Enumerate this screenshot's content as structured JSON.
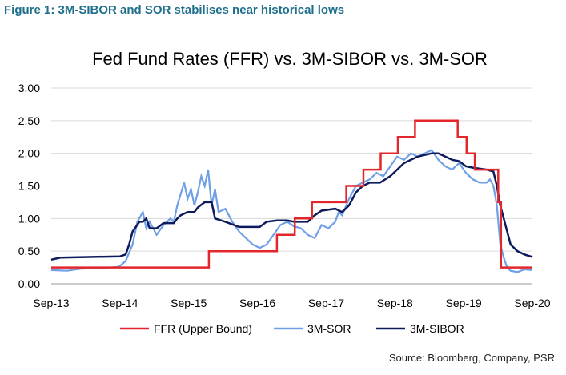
{
  "figure_title": "Figure 1: 3M-SIBOR and SOR stabilises near historical lows",
  "source": "Source: Bloomberg, Company, PSR",
  "colors": {
    "ffr": "#e3262b",
    "sor": "#6f9fe6",
    "sibor": "#0d1a5c",
    "title": "#1f6f8b"
  },
  "chart_data": {
    "type": "line",
    "title": "Fed Fund Rates (FFR) vs. 3M-SIBOR vs. 3M-SOR",
    "xlabel": "",
    "ylabel": "",
    "ylim": [
      0,
      3
    ],
    "xlim": [
      2013.667,
      2020.667
    ],
    "yticks": [
      "0.00",
      "0.50",
      "1.00",
      "1.50",
      "2.00",
      "2.50",
      "3.00"
    ],
    "xticks": [
      {
        "label": "Sep-13",
        "x": 2013.667
      },
      {
        "label": "Sep-14",
        "x": 2014.667
      },
      {
        "label": "Sep-15",
        "x": 2015.667
      },
      {
        "label": "Sep-16",
        "x": 2016.667
      },
      {
        "label": "Sep-17",
        "x": 2017.667
      },
      {
        "label": "Sep-18",
        "x": 2018.667
      },
      {
        "label": "Sep-19",
        "x": 2019.667
      },
      {
        "label": "Sep-20",
        "x": 2020.667
      }
    ],
    "grid": "horizontal",
    "legend": "bottom",
    "series": [
      {
        "name": "FFR (Upper Bound)",
        "step": true,
        "points": [
          [
            2013.667,
            0.25
          ],
          [
            2015.96,
            0.25
          ],
          [
            2015.96,
            0.5
          ],
          [
            2016.95,
            0.5
          ],
          [
            2016.95,
            0.75
          ],
          [
            2017.21,
            0.75
          ],
          [
            2017.21,
            1.0
          ],
          [
            2017.46,
            1.0
          ],
          [
            2017.46,
            1.25
          ],
          [
            2017.96,
            1.25
          ],
          [
            2017.96,
            1.5
          ],
          [
            2018.21,
            1.5
          ],
          [
            2018.21,
            1.75
          ],
          [
            2018.46,
            1.75
          ],
          [
            2018.46,
            2.0
          ],
          [
            2018.71,
            2.0
          ],
          [
            2018.71,
            2.25
          ],
          [
            2018.96,
            2.25
          ],
          [
            2018.96,
            2.5
          ],
          [
            2019.58,
            2.5
          ],
          [
            2019.58,
            2.25
          ],
          [
            2019.71,
            2.25
          ],
          [
            2019.71,
            2.0
          ],
          [
            2019.83,
            2.0
          ],
          [
            2019.83,
            1.75
          ],
          [
            2020.17,
            1.75
          ],
          [
            2020.17,
            1.25
          ],
          [
            2020.21,
            1.25
          ],
          [
            2020.21,
            0.25
          ],
          [
            2020.667,
            0.25
          ]
        ]
      },
      {
        "name": "3M-SOR",
        "points": [
          [
            2013.667,
            0.21
          ],
          [
            2013.9,
            0.2
          ],
          [
            2014.1,
            0.23
          ],
          [
            2014.4,
            0.24
          ],
          [
            2014.65,
            0.26
          ],
          [
            2014.75,
            0.35
          ],
          [
            2014.85,
            0.6
          ],
          [
            2014.92,
            0.95
          ],
          [
            2015.0,
            1.1
          ],
          [
            2015.05,
            0.85
          ],
          [
            2015.1,
            0.95
          ],
          [
            2015.2,
            0.75
          ],
          [
            2015.3,
            0.9
          ],
          [
            2015.4,
            1.0
          ],
          [
            2015.45,
            0.95
          ],
          [
            2015.5,
            1.2
          ],
          [
            2015.6,
            1.55
          ],
          [
            2015.65,
            1.3
          ],
          [
            2015.7,
            1.45
          ],
          [
            2015.75,
            1.2
          ],
          [
            2015.8,
            1.4
          ],
          [
            2015.85,
            1.65
          ],
          [
            2015.9,
            1.5
          ],
          [
            2015.95,
            1.75
          ],
          [
            2016.0,
            1.2
          ],
          [
            2016.05,
            1.45
          ],
          [
            2016.1,
            1.1
          ],
          [
            2016.2,
            1.15
          ],
          [
            2016.3,
            0.95
          ],
          [
            2016.4,
            0.8
          ],
          [
            2016.5,
            0.7
          ],
          [
            2016.6,
            0.6
          ],
          [
            2016.7,
            0.55
          ],
          [
            2016.8,
            0.6
          ],
          [
            2016.9,
            0.75
          ],
          [
            2017.0,
            0.9
          ],
          [
            2017.1,
            0.95
          ],
          [
            2017.2,
            0.88
          ],
          [
            2017.3,
            0.85
          ],
          [
            2017.4,
            0.75
          ],
          [
            2017.5,
            0.7
          ],
          [
            2017.6,
            0.9
          ],
          [
            2017.7,
            0.85
          ],
          [
            2017.8,
            0.95
          ],
          [
            2017.85,
            1.1
          ],
          [
            2017.9,
            1.05
          ],
          [
            2018.0,
            1.3
          ],
          [
            2018.1,
            1.5
          ],
          [
            2018.2,
            1.55
          ],
          [
            2018.3,
            1.6
          ],
          [
            2018.4,
            1.7
          ],
          [
            2018.5,
            1.65
          ],
          [
            2018.6,
            1.8
          ],
          [
            2018.7,
            1.95
          ],
          [
            2018.8,
            1.9
          ],
          [
            2018.9,
            2.0
          ],
          [
            2019.0,
            1.95
          ],
          [
            2019.1,
            2.0
          ],
          [
            2019.2,
            2.05
          ],
          [
            2019.3,
            1.9
          ],
          [
            2019.4,
            1.8
          ],
          [
            2019.5,
            1.75
          ],
          [
            2019.6,
            1.85
          ],
          [
            2019.7,
            1.7
          ],
          [
            2019.8,
            1.6
          ],
          [
            2019.9,
            1.55
          ],
          [
            2020.0,
            1.55
          ],
          [
            2020.05,
            1.6
          ],
          [
            2020.1,
            1.5
          ],
          [
            2020.15,
            1.2
          ],
          [
            2020.2,
            0.6
          ],
          [
            2020.25,
            0.4
          ],
          [
            2020.3,
            0.25
          ],
          [
            2020.35,
            0.2
          ],
          [
            2020.45,
            0.18
          ],
          [
            2020.55,
            0.22
          ],
          [
            2020.667,
            0.21
          ]
        ]
      },
      {
        "name": "3M-SIBOR",
        "step": true,
        "points": [
          [
            2013.667,
            0.37
          ],
          [
            2013.8,
            0.4
          ],
          [
            2014.667,
            0.42
          ],
          [
            2014.75,
            0.45
          ],
          [
            2014.8,
            0.6
          ],
          [
            2014.85,
            0.8
          ],
          [
            2014.95,
            0.95
          ],
          [
            2015.0,
            0.95
          ],
          [
            2015.05,
            1.0
          ],
          [
            2015.1,
            0.85
          ],
          [
            2015.2,
            0.85
          ],
          [
            2015.3,
            0.93
          ],
          [
            2015.45,
            0.93
          ],
          [
            2015.5,
            1.0
          ],
          [
            2015.55,
            1.05
          ],
          [
            2015.65,
            1.1
          ],
          [
            2015.75,
            1.1
          ],
          [
            2015.8,
            1.17
          ],
          [
            2015.9,
            1.25
          ],
          [
            2016.0,
            1.25
          ],
          [
            2016.05,
            1.0
          ],
          [
            2016.2,
            0.95
          ],
          [
            2016.4,
            0.87
          ],
          [
            2016.6,
            0.87
          ],
          [
            2016.7,
            0.87
          ],
          [
            2016.8,
            0.95
          ],
          [
            2016.95,
            0.97
          ],
          [
            2017.1,
            0.97
          ],
          [
            2017.2,
            0.95
          ],
          [
            2017.4,
            0.95
          ],
          [
            2017.5,
            1.05
          ],
          [
            2017.6,
            1.12
          ],
          [
            2017.8,
            1.15
          ],
          [
            2017.9,
            1.1
          ],
          [
            2018.0,
            1.2
          ],
          [
            2018.1,
            1.4
          ],
          [
            2018.2,
            1.5
          ],
          [
            2018.3,
            1.55
          ],
          [
            2018.45,
            1.55
          ],
          [
            2018.6,
            1.65
          ],
          [
            2018.7,
            1.75
          ],
          [
            2018.8,
            1.85
          ],
          [
            2018.9,
            1.9
          ],
          [
            2019.0,
            1.95
          ],
          [
            2019.2,
            2.0
          ],
          [
            2019.3,
            2.0
          ],
          [
            2019.4,
            1.95
          ],
          [
            2019.5,
            1.9
          ],
          [
            2019.6,
            1.88
          ],
          [
            2019.7,
            1.8
          ],
          [
            2019.8,
            1.78
          ],
          [
            2020.0,
            1.75
          ],
          [
            2020.1,
            1.72
          ],
          [
            2020.15,
            1.5
          ],
          [
            2020.2,
            1.2
          ],
          [
            2020.25,
            1.0
          ],
          [
            2020.3,
            0.8
          ],
          [
            2020.35,
            0.6
          ],
          [
            2020.45,
            0.5
          ],
          [
            2020.55,
            0.45
          ],
          [
            2020.667,
            0.41
          ]
        ]
      }
    ]
  }
}
